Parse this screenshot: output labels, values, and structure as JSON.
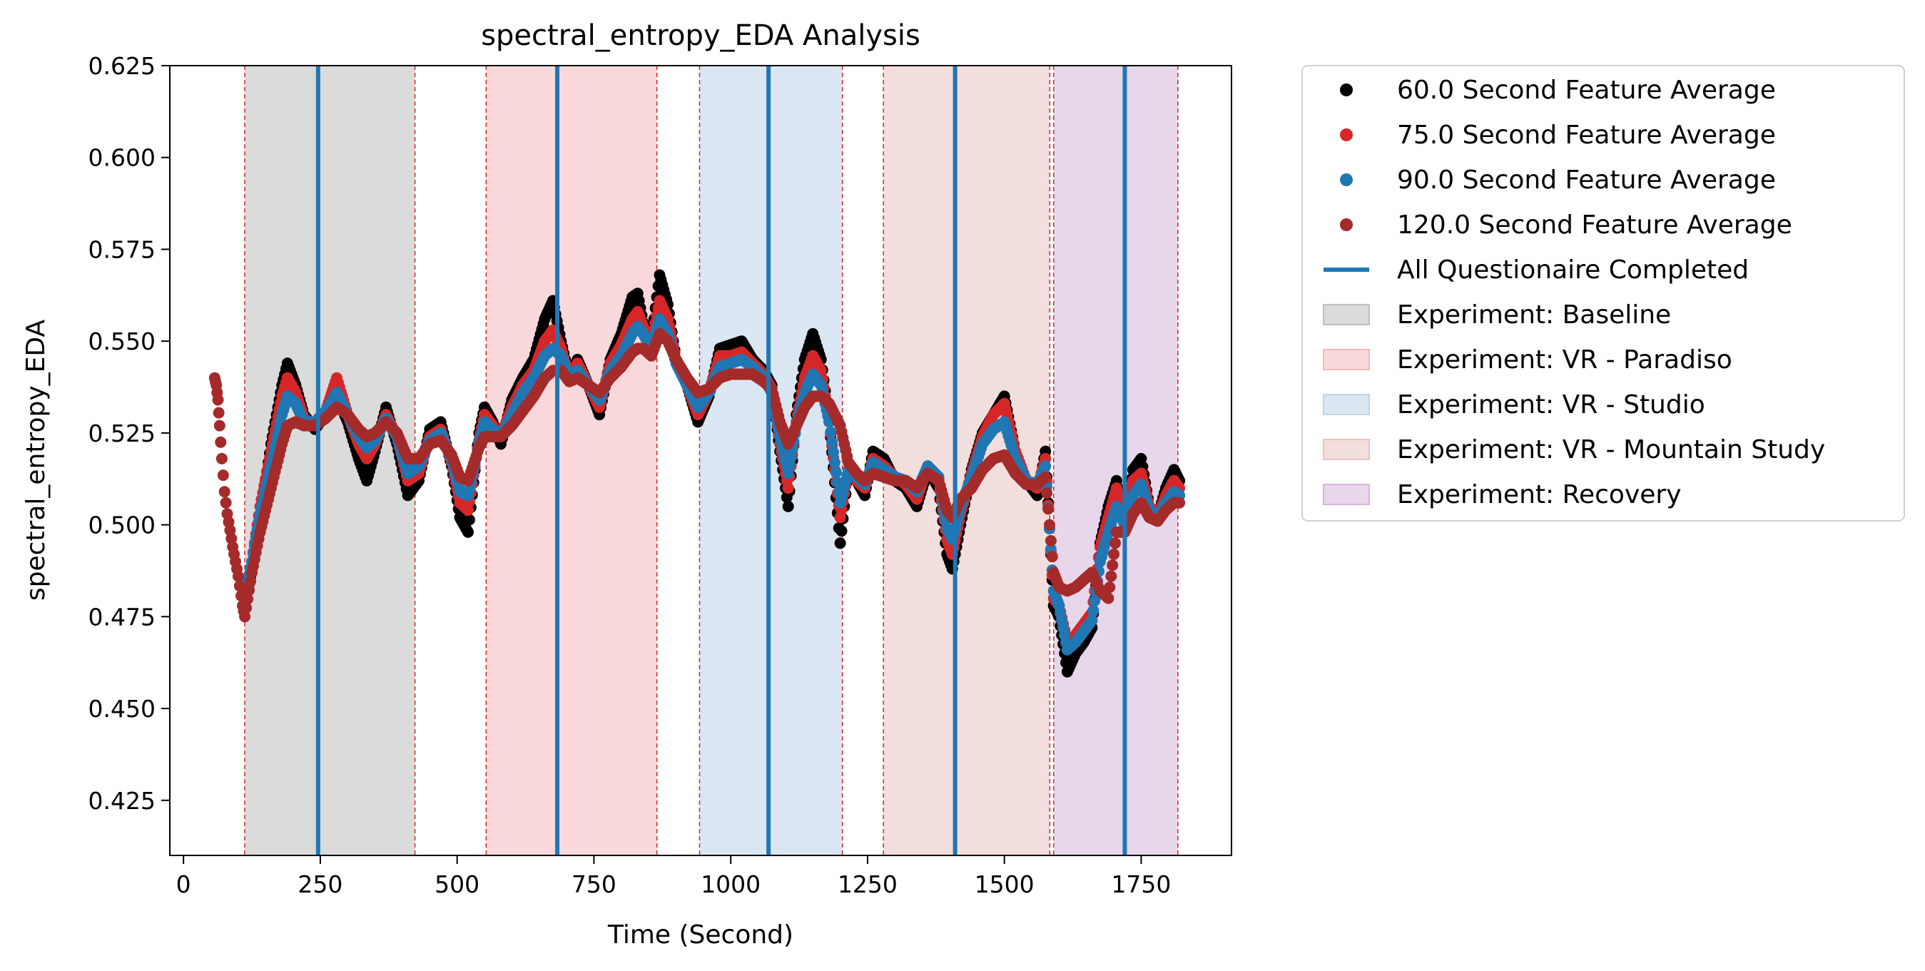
{
  "chart_data": {
    "type": "scatter",
    "title": "spectral_entropy_EDA Analysis",
    "xlabel": "Time (Second)",
    "ylabel": "spectral_entropy_EDA",
    "xlim": [
      -25,
      1915
    ],
    "ylim": [
      0.41,
      0.625
    ],
    "xticks": [
      0,
      250,
      500,
      750,
      1000,
      1250,
      1500,
      1750
    ],
    "yticks": [
      0.425,
      0.45,
      0.475,
      0.5,
      0.525,
      0.55,
      0.575,
      0.6,
      0.625
    ],
    "xtick_labels": [
      "0",
      "250",
      "500",
      "750",
      "1000",
      "1250",
      "1500",
      "1750"
    ],
    "ytick_labels": [
      "0.425",
      "0.450",
      "0.475",
      "0.500",
      "0.525",
      "0.550",
      "0.575",
      "0.600",
      "0.625"
    ],
    "grid": false,
    "legend_position": "outside-right",
    "phases": [
      {
        "name": "Experiment: Baseline",
        "start": 112,
        "end": 423,
        "color": "#bdbdbd"
      },
      {
        "name": "Experiment: VR - Paradiso",
        "start": 553,
        "end": 865,
        "color": "#f4b8bd"
      },
      {
        "name": "Experiment: VR - Studio",
        "start": 943,
        "end": 1204,
        "color": "#bcd4e8"
      },
      {
        "name": "Experiment: VR - Mountain Study",
        "start": 1279,
        "end": 1583,
        "color": "#e8c2bf"
      },
      {
        "name": "Experiment: Recovery",
        "start": 1590,
        "end": 1817,
        "color": "#d6b4db"
      }
    ],
    "phase_boundaries": [
      112,
      423,
      553,
      865,
      943,
      1204,
      1279,
      1583,
      1590,
      1817
    ],
    "questionnaire_completed": {
      "name": "All Questionaire Completed",
      "x": [
        246,
        683,
        1069,
        1410,
        1720
      ],
      "color": "#1f77b4"
    },
    "series": [
      {
        "name": "60.0 Second Feature Average",
        "color": "#000000",
        "x": [
          112,
          125,
          140,
          160,
          180,
          190,
          205,
          220,
          240,
          260,
          280,
          300,
          320,
          335,
          350,
          370,
          390,
          410,
          430,
          450,
          470,
          490,
          505,
          520,
          540,
          550,
          565,
          580,
          600,
          620,
          640,
          660,
          675,
          690,
          705,
          720,
          740,
          760,
          780,
          800,
          820,
          830,
          840,
          855,
          870,
          885,
          900,
          920,
          940,
          960,
          980,
          1000,
          1020,
          1040,
          1060,
          1075,
          1090,
          1105,
          1120,
          1135,
          1150,
          1165,
          1180,
          1200,
          1215,
          1230,
          1245,
          1260,
          1280,
          1300,
          1320,
          1340,
          1360,
          1380,
          1395,
          1405,
          1420,
          1440,
          1460,
          1480,
          1500,
          1520,
          1540,
          1560,
          1575,
          1590,
          1600,
          1615,
          1630,
          1645,
          1660,
          1675,
          1690,
          1705,
          1720,
          1735,
          1750,
          1765,
          1780,
          1795,
          1810,
          1820
        ],
        "y": [
          0.478,
          0.488,
          0.502,
          0.522,
          0.538,
          0.544,
          0.538,
          0.53,
          0.526,
          0.53,
          0.535,
          0.528,
          0.518,
          0.512,
          0.52,
          0.532,
          0.522,
          0.508,
          0.512,
          0.526,
          0.528,
          0.516,
          0.502,
          0.498,
          0.525,
          0.532,
          0.528,
          0.522,
          0.534,
          0.54,
          0.545,
          0.556,
          0.561,
          0.55,
          0.54,
          0.545,
          0.538,
          0.53,
          0.545,
          0.552,
          0.562,
          0.563,
          0.555,
          0.55,
          0.568,
          0.56,
          0.545,
          0.538,
          0.528,
          0.535,
          0.548,
          0.549,
          0.55,
          0.545,
          0.542,
          0.538,
          0.52,
          0.505,
          0.53,
          0.545,
          0.552,
          0.545,
          0.528,
          0.495,
          0.515,
          0.512,
          0.508,
          0.52,
          0.518,
          0.512,
          0.51,
          0.505,
          0.515,
          0.51,
          0.492,
          0.488,
          0.5,
          0.515,
          0.525,
          0.53,
          0.535,
          0.52,
          0.512,
          0.508,
          0.52,
          0.478,
          0.475,
          0.46,
          0.465,
          0.468,
          0.472,
          0.495,
          0.505,
          0.512,
          0.5,
          0.515,
          0.518,
          0.505,
          0.502,
          0.51,
          0.515,
          0.512
        ]
      },
      {
        "name": "75.0 Second Feature Average",
        "color": "#d62728",
        "x": [
          112,
          125,
          140,
          160,
          180,
          190,
          205,
          220,
          240,
          260,
          280,
          300,
          320,
          335,
          350,
          370,
          390,
          410,
          430,
          450,
          470,
          490,
          505,
          520,
          540,
          550,
          565,
          580,
          600,
          620,
          640,
          660,
          675,
          690,
          705,
          720,
          740,
          760,
          780,
          800,
          820,
          830,
          840,
          855,
          870,
          885,
          900,
          920,
          940,
          960,
          980,
          1000,
          1020,
          1040,
          1060,
          1075,
          1090,
          1105,
          1120,
          1135,
          1150,
          1165,
          1180,
          1200,
          1215,
          1230,
          1245,
          1260,
          1280,
          1300,
          1320,
          1340,
          1360,
          1380,
          1395,
          1405,
          1420,
          1440,
          1460,
          1480,
          1500,
          1520,
          1540,
          1560,
          1575,
          1590,
          1600,
          1615,
          1630,
          1645,
          1660,
          1675,
          1690,
          1705,
          1720,
          1735,
          1750,
          1765,
          1780,
          1795,
          1810,
          1820
        ],
        "y": [
          0.48,
          0.49,
          0.505,
          0.52,
          0.535,
          0.54,
          0.536,
          0.529,
          0.527,
          0.531,
          0.54,
          0.53,
          0.522,
          0.518,
          0.522,
          0.53,
          0.524,
          0.512,
          0.514,
          0.524,
          0.526,
          0.517,
          0.506,
          0.504,
          0.523,
          0.53,
          0.527,
          0.524,
          0.532,
          0.538,
          0.542,
          0.55,
          0.553,
          0.548,
          0.54,
          0.544,
          0.538,
          0.532,
          0.544,
          0.549,
          0.556,
          0.558,
          0.554,
          0.549,
          0.561,
          0.556,
          0.545,
          0.538,
          0.53,
          0.536,
          0.546,
          0.546,
          0.547,
          0.544,
          0.541,
          0.537,
          0.522,
          0.51,
          0.528,
          0.54,
          0.546,
          0.542,
          0.528,
          0.502,
          0.515,
          0.512,
          0.51,
          0.518,
          0.516,
          0.513,
          0.511,
          0.507,
          0.516,
          0.512,
          0.496,
          0.492,
          0.503,
          0.514,
          0.524,
          0.53,
          0.533,
          0.52,
          0.512,
          0.51,
          0.518,
          0.48,
          0.478,
          0.468,
          0.47,
          0.473,
          0.476,
          0.494,
          0.502,
          0.51,
          0.502,
          0.512,
          0.514,
          0.505,
          0.502,
          0.508,
          0.512,
          0.51
        ]
      },
      {
        "name": "90.0 Second Feature Average",
        "color": "#1f77b4",
        "x": [
          112,
          125,
          140,
          160,
          180,
          190,
          205,
          220,
          240,
          260,
          280,
          300,
          320,
          335,
          350,
          370,
          390,
          410,
          430,
          450,
          470,
          490,
          505,
          520,
          540,
          550,
          565,
          580,
          600,
          620,
          640,
          660,
          675,
          690,
          705,
          720,
          740,
          760,
          780,
          800,
          820,
          830,
          840,
          855,
          870,
          885,
          900,
          920,
          940,
          960,
          980,
          1000,
          1020,
          1040,
          1060,
          1075,
          1090,
          1105,
          1120,
          1135,
          1150,
          1165,
          1180,
          1200,
          1215,
          1230,
          1245,
          1260,
          1280,
          1300,
          1320,
          1340,
          1360,
          1380,
          1395,
          1405,
          1420,
          1440,
          1460,
          1480,
          1500,
          1520,
          1540,
          1560,
          1575,
          1590,
          1600,
          1615,
          1630,
          1645,
          1660,
          1675,
          1690,
          1705,
          1720,
          1735,
          1750,
          1765,
          1780,
          1795,
          1810,
          1820
        ],
        "y": [
          0.481,
          0.49,
          0.503,
          0.516,
          0.53,
          0.535,
          0.533,
          0.528,
          0.528,
          0.531,
          0.536,
          0.53,
          0.524,
          0.521,
          0.523,
          0.529,
          0.524,
          0.514,
          0.516,
          0.523,
          0.525,
          0.518,
          0.509,
          0.508,
          0.522,
          0.528,
          0.526,
          0.524,
          0.53,
          0.536,
          0.54,
          0.546,
          0.548,
          0.546,
          0.54,
          0.542,
          0.538,
          0.534,
          0.542,
          0.546,
          0.552,
          0.554,
          0.552,
          0.548,
          0.556,
          0.552,
          0.544,
          0.538,
          0.532,
          0.536,
          0.543,
          0.544,
          0.545,
          0.543,
          0.54,
          0.536,
          0.524,
          0.514,
          0.527,
          0.536,
          0.541,
          0.538,
          0.528,
          0.506,
          0.515,
          0.513,
          0.511,
          0.517,
          0.515,
          0.513,
          0.512,
          0.509,
          0.516,
          0.513,
          0.499,
          0.496,
          0.505,
          0.513,
          0.522,
          0.526,
          0.528,
          0.518,
          0.512,
          0.511,
          0.516,
          0.482,
          0.478,
          0.466,
          0.468,
          0.471,
          0.474,
          0.49,
          0.498,
          0.505,
          0.5,
          0.508,
          0.511,
          0.504,
          0.502,
          0.506,
          0.509,
          0.508
        ]
      },
      {
        "name": "120.0 Second Feature Average",
        "color": "#a52a2a",
        "x": [
          57,
          60,
          63,
          66,
          70,
          75,
          80,
          90,
          100,
          108,
          112,
          125,
          140,
          160,
          180,
          190,
          205,
          220,
          240,
          260,
          280,
          300,
          320,
          335,
          350,
          370,
          390,
          410,
          430,
          450,
          470,
          490,
          505,
          520,
          540,
          550,
          565,
          580,
          600,
          620,
          640,
          660,
          675,
          690,
          705,
          720,
          740,
          760,
          780,
          800,
          820,
          830,
          840,
          855,
          870,
          885,
          900,
          920,
          940,
          960,
          980,
          1000,
          1020,
          1040,
          1060,
          1075,
          1090,
          1105,
          1120,
          1135,
          1150,
          1165,
          1180,
          1200,
          1215,
          1230,
          1245,
          1260,
          1280,
          1300,
          1320,
          1340,
          1360,
          1380,
          1395,
          1405,
          1420,
          1440,
          1460,
          1480,
          1500,
          1520,
          1540,
          1560,
          1575,
          1590,
          1600,
          1615,
          1630,
          1645,
          1660,
          1675,
          1690,
          1705,
          1720,
          1735,
          1750,
          1765,
          1780,
          1795,
          1810,
          1820
        ],
        "y": [
          0.54,
          0.538,
          0.534,
          0.527,
          0.518,
          0.509,
          0.503,
          0.494,
          0.486,
          0.478,
          0.475,
          0.487,
          0.498,
          0.51,
          0.522,
          0.527,
          0.528,
          0.527,
          0.527,
          0.529,
          0.532,
          0.53,
          0.526,
          0.524,
          0.525,
          0.528,
          0.525,
          0.518,
          0.518,
          0.522,
          0.523,
          0.519,
          0.513,
          0.512,
          0.521,
          0.524,
          0.524,
          0.524,
          0.527,
          0.531,
          0.535,
          0.54,
          0.542,
          0.542,
          0.539,
          0.54,
          0.538,
          0.536,
          0.54,
          0.543,
          0.547,
          0.548,
          0.548,
          0.546,
          0.552,
          0.55,
          0.545,
          0.54,
          0.536,
          0.537,
          0.54,
          0.541,
          0.541,
          0.541,
          0.539,
          0.537,
          0.528,
          0.522,
          0.527,
          0.532,
          0.535,
          0.535,
          0.533,
          0.527,
          0.517,
          0.514,
          0.512,
          0.514,
          0.513,
          0.512,
          0.512,
          0.51,
          0.514,
          0.512,
          0.504,
          0.502,
          0.507,
          0.51,
          0.515,
          0.518,
          0.519,
          0.514,
          0.511,
          0.511,
          0.513,
          0.487,
          0.483,
          0.482,
          0.483,
          0.485,
          0.487,
          0.482,
          0.48,
          0.498,
          0.498,
          0.503,
          0.506,
          0.502,
          0.501,
          0.504,
          0.506,
          0.506
        ]
      }
    ]
  }
}
